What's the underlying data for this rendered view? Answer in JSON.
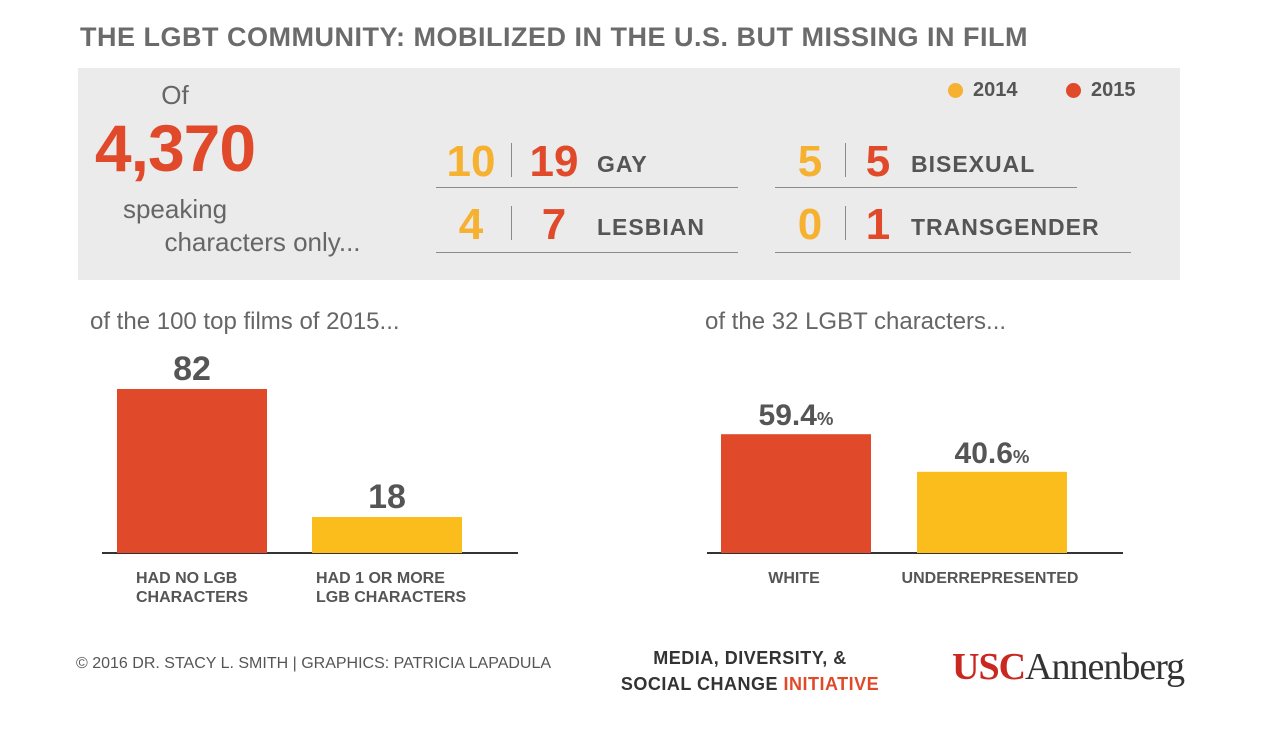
{
  "title": "THE LGBT COMMUNITY: MOBILIZED IN THE U.S. BUT MISSING IN FILM",
  "summary": {
    "of": "Of",
    "total": "4,370",
    "desc_line1": "speaking",
    "desc_line2": "characters only..."
  },
  "legend": [
    {
      "label": "2014",
      "color": "#f5b12f"
    },
    {
      "label": "2015",
      "color": "#e04a2b"
    }
  ],
  "identity_stats": [
    {
      "label": "GAY",
      "y2014": "10",
      "y2015": "19"
    },
    {
      "label": "BISEXUAL",
      "y2014": "5",
      "y2015": "5"
    },
    {
      "label": "LESBIAN",
      "y2014": "4",
      "y2015": "7"
    },
    {
      "label": "TRANSGENDER",
      "y2014": "0",
      "y2015": "1"
    }
  ],
  "chart_data": [
    {
      "type": "bar",
      "title": "of the 100 top films of 2015...",
      "categories": [
        [
          "HAD NO LGB",
          "CHARACTERS"
        ],
        [
          "HAD 1 OR MORE",
          "LGB CHARACTERS"
        ]
      ],
      "values": [
        82,
        18
      ],
      "value_labels": [
        "82",
        "18"
      ],
      "colors": [
        "#e04a2b",
        "#fbbd1b"
      ],
      "ylim": [
        0,
        100
      ]
    },
    {
      "type": "bar",
      "title": "of the 32 LGBT characters...",
      "categories": [
        [
          "WHITE"
        ],
        [
          "UNDERREPRESENTED"
        ]
      ],
      "values": [
        59.4,
        40.6
      ],
      "value_labels": [
        "59.4",
        "40.6"
      ],
      "value_suffix": "%",
      "colors": [
        "#e04a2b",
        "#fbbd1b"
      ],
      "ylim": [
        0,
        100
      ]
    }
  ],
  "footer": {
    "credit": "© 2016 DR. STACY L. SMITH | GRAPHICS: PATRICIA LAPADULA",
    "initiative_line1": "MEDIA, DIVERSITY, &",
    "initiative_line2a": "SOCIAL CHANGE ",
    "initiative_line2b": "INITIATIVE",
    "logo_usc": "USC",
    "logo_annenberg": "Annenberg"
  }
}
